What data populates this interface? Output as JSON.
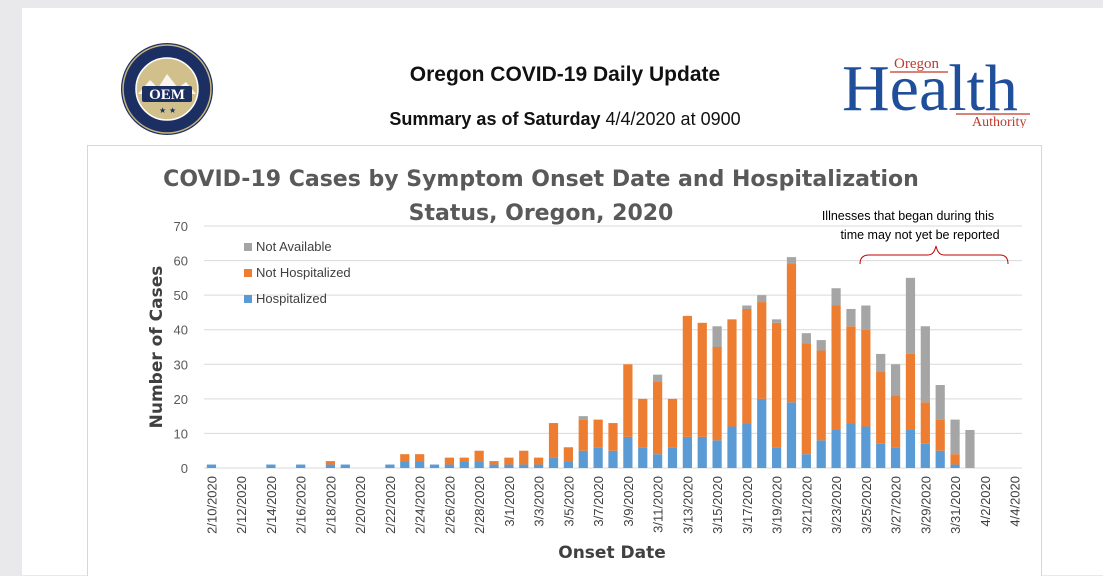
{
  "header": {
    "title": "Oregon COVID-19 Daily Update",
    "subtitle_bold": "Summary as of Saturday",
    "subtitle_rest": "4/4/2020 at 0900"
  },
  "logos": {
    "oem_text": "OEM",
    "oem_ring_text": "OREGON MILITARY DEPARTMENT · OFFICE OF EMERGENCY MANAGEMENT",
    "oha_top": "Oregon",
    "oha_main": "Health",
    "oha_bottom": "Authority"
  },
  "colors": {
    "hospitalized": "#5b9bd5",
    "not_hospitalized": "#ed7d31",
    "not_available": "#a5a5a5",
    "oha_blue": "#1f4e9a",
    "oha_orange": "#c0392b",
    "annotation_brace": "#c00000"
  },
  "chart_data": {
    "type": "bar",
    "stacked": true,
    "title_line1": "COVID-19 Cases by Symptom Onset Date and Hospitalization",
    "title_line2": "Status,  Oregon, 2020",
    "xlabel": "Onset Date",
    "ylabel": "Number of Cases",
    "ylim": [
      0,
      70
    ],
    "yticks": [
      0,
      10,
      20,
      30,
      40,
      50,
      60,
      70
    ],
    "grid": true,
    "legend_placement": "top-left",
    "annotation": {
      "line1": "Illnesses that began during this",
      "line2": "time may not yet be reported"
    },
    "categories": [
      "2/10/2020",
      "2/11/2020",
      "2/12/2020",
      "2/13/2020",
      "2/14/2020",
      "2/15/2020",
      "2/16/2020",
      "2/17/2020",
      "2/18/2020",
      "2/19/2020",
      "2/20/2020",
      "2/21/2020",
      "2/22/2020",
      "2/23/2020",
      "2/24/2020",
      "2/25/2020",
      "2/26/2020",
      "2/27/2020",
      "2/28/2020",
      "2/29/2020",
      "3/1/2020",
      "3/2/2020",
      "3/3/2020",
      "3/4/2020",
      "3/5/2020",
      "3/6/2020",
      "3/7/2020",
      "3/8/2020",
      "3/9/2020",
      "3/10/2020",
      "3/11/2020",
      "3/12/2020",
      "3/13/2020",
      "3/14/2020",
      "3/15/2020",
      "3/16/2020",
      "3/17/2020",
      "3/18/2020",
      "3/19/2020",
      "3/20/2020",
      "3/21/2020",
      "3/22/2020",
      "3/23/2020",
      "3/24/2020",
      "3/25/2020",
      "3/26/2020",
      "3/27/2020",
      "3/28/2020",
      "3/29/2020",
      "3/30/2020",
      "3/31/2020",
      "4/1/2020",
      "4/2/2020",
      "4/3/2020",
      "4/4/2020"
    ],
    "tick_labels": [
      "2/10/2020",
      "2/12/2020",
      "2/14/2020",
      "2/16/2020",
      "2/18/2020",
      "2/20/2020",
      "2/22/2020",
      "2/24/2020",
      "2/26/2020",
      "2/28/2020",
      "3/1/2020",
      "3/3/2020",
      "3/5/2020",
      "3/7/2020",
      "3/9/2020",
      "3/11/2020",
      "3/13/2020",
      "3/15/2020",
      "3/17/2020",
      "3/19/2020",
      "3/21/2020",
      "3/23/2020",
      "3/25/2020",
      "3/27/2020",
      "3/29/2020",
      "3/31/2020",
      "4/2/2020",
      "4/4/2020"
    ],
    "series": [
      {
        "name": "Hospitalized",
        "values": [
          1,
          0,
          0,
          0,
          1,
          0,
          1,
          0,
          1,
          1,
          0,
          0,
          1,
          2,
          2,
          1,
          1,
          2,
          2,
          1,
          1,
          1,
          1,
          3,
          2,
          5,
          6,
          5,
          9,
          6,
          4,
          6,
          9,
          9,
          8,
          12,
          13,
          20,
          6,
          19,
          4,
          8,
          11,
          13,
          12,
          7,
          6,
          11,
          7,
          5,
          1,
          0,
          0,
          0,
          0
        ]
      },
      {
        "name": "Not Hospitalized",
        "values": [
          0,
          0,
          0,
          0,
          0,
          0,
          0,
          0,
          1,
          0,
          0,
          0,
          0,
          2,
          2,
          0,
          2,
          1,
          3,
          1,
          2,
          4,
          2,
          10,
          4,
          9,
          8,
          8,
          21,
          14,
          21,
          14,
          35,
          33,
          27,
          31,
          33,
          28,
          36,
          40,
          32,
          26,
          36,
          28,
          28,
          21,
          15,
          22,
          12,
          9,
          3,
          0,
          0,
          0,
          0
        ]
      },
      {
        "name": "Not Available",
        "values": [
          0,
          0,
          0,
          0,
          0,
          0,
          0,
          0,
          0,
          0,
          0,
          0,
          0,
          0,
          0,
          0,
          0,
          0,
          0,
          0,
          0,
          0,
          0,
          0,
          0,
          1,
          0,
          0,
          0,
          0,
          2,
          0,
          0,
          0,
          6,
          0,
          1,
          2,
          1,
          2,
          3,
          3,
          5,
          5,
          7,
          5,
          9,
          22,
          22,
          10,
          10,
          11,
          0,
          0,
          0
        ]
      }
    ]
  }
}
